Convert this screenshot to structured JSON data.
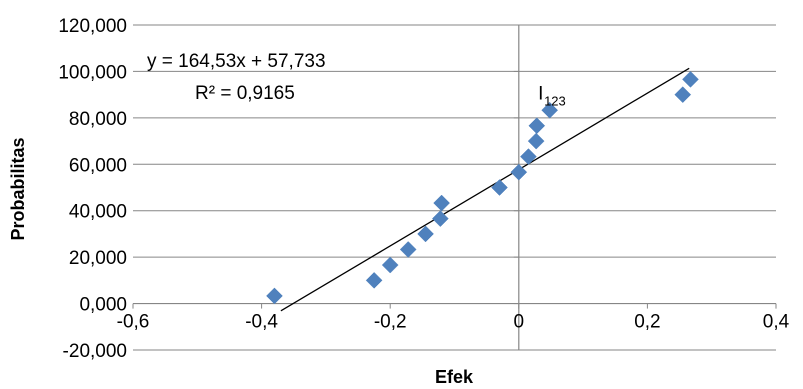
{
  "chart_data": {
    "type": "scatter",
    "xlabel": "Efek",
    "ylabel": "Probabilitas",
    "xlim": [
      -0.6,
      0.4
    ],
    "ylim": [
      -20,
      120
    ],
    "x_ticks": [
      -0.6,
      -0.4,
      -0.2,
      0,
      0.2,
      0.4
    ],
    "x_tick_labels": [
      "-0,6",
      "-0,4",
      "-0,2",
      "0",
      "0,2",
      "0,4"
    ],
    "y_ticks": [
      120,
      100,
      80,
      60,
      40,
      20,
      0,
      -20
    ],
    "y_tick_labels": [
      "120,000",
      "100,000",
      "80,000",
      "60,000",
      "40,000",
      "20,000",
      "0,000",
      "-20,000"
    ],
    "grid": "horizontal",
    "marker_color": "#4f81bd",
    "series": [
      {
        "points": [
          {
            "x": -0.38,
            "y": 3.3
          },
          {
            "x": -0.225,
            "y": 10.0
          },
          {
            "x": -0.2,
            "y": 16.6
          },
          {
            "x": -0.172,
            "y": 23.3
          },
          {
            "x": -0.145,
            "y": 30.0
          },
          {
            "x": -0.122,
            "y": 36.6
          },
          {
            "x": -0.12,
            "y": 43.3
          },
          {
            "x": -0.03,
            "y": 50.0
          },
          {
            "x": 0.0,
            "y": 56.6
          },
          {
            "x": 0.015,
            "y": 63.3
          },
          {
            "x": 0.027,
            "y": 70.0
          },
          {
            "x": 0.028,
            "y": 76.6
          },
          {
            "x": 0.048,
            "y": 83.3
          },
          {
            "x": 0.255,
            "y": 90.0
          },
          {
            "x": 0.267,
            "y": 96.6
          }
        ]
      }
    ],
    "trendline": {
      "slope": 164.53,
      "intercept": 57.733,
      "x_range": [
        -0.37,
        0.265
      ],
      "equation_label": "y = 164,53x + 57,733",
      "r2_label": "R² = 0,9165"
    },
    "annotations": [
      {
        "text": "I",
        "subscript": "123",
        "x": 0.03,
        "y": 88
      }
    ]
  }
}
